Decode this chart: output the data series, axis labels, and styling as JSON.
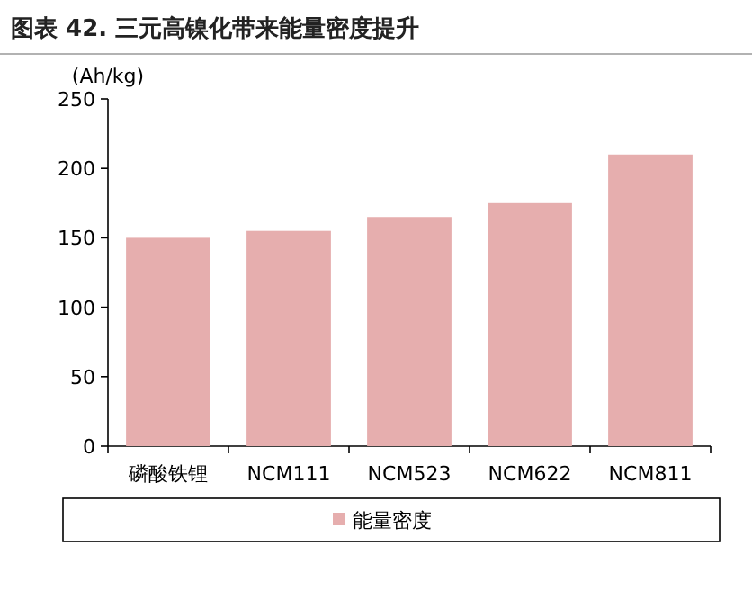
{
  "chart_data": {
    "type": "bar",
    "title": "图表 42. 三元高镍化带来能量密度提升",
    "ylabel": "(Ah/kg)",
    "categories": [
      "磷酸铁锂",
      "NCM111",
      "NCM523",
      "NCM622",
      "NCM811"
    ],
    "series": [
      {
        "name": "能量密度",
        "color": "#e6aeae",
        "values": [
          150,
          155,
          165,
          175,
          210
        ]
      }
    ],
    "ylim": [
      0,
      250
    ],
    "yticks": [
      0,
      50,
      100,
      150,
      200,
      250
    ],
    "legend": "bottom"
  }
}
